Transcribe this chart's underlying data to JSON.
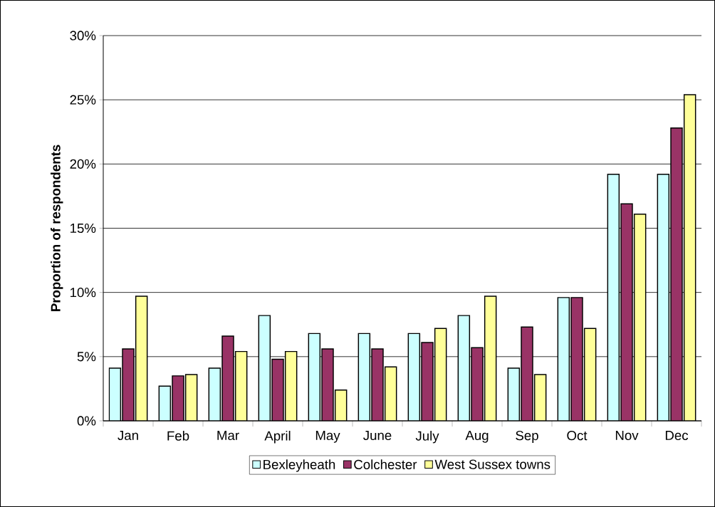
{
  "chart_data": {
    "type": "bar",
    "ylabel": "Proportion of respondents",
    "categories": [
      "Jan",
      "Feb",
      "Mar",
      "April",
      "May",
      "June",
      "July",
      "Aug",
      "Sep",
      "Oct",
      "Nov",
      "Dec"
    ],
    "series": [
      {
        "name": "Bexleyheath",
        "color": "#ccffff",
        "values": [
          4.1,
          2.7,
          4.1,
          8.2,
          6.8,
          6.8,
          6.8,
          8.2,
          4.1,
          9.6,
          19.2,
          19.2
        ]
      },
      {
        "name": "Colchester",
        "color": "#993366",
        "values": [
          5.6,
          3.5,
          6.6,
          4.8,
          5.6,
          5.6,
          6.1,
          5.7,
          7.3,
          9.6,
          16.9,
          22.8
        ]
      },
      {
        "name": "West Sussex towns",
        "color": "#ffff99",
        "values": [
          9.7,
          3.6,
          5.4,
          5.4,
          2.4,
          4.2,
          7.2,
          9.7,
          3.6,
          7.2,
          16.1,
          25.4
        ]
      }
    ],
    "ylim": [
      0,
      30
    ],
    "yticks": [
      {
        "value": 0,
        "label": "0%"
      },
      {
        "value": 5,
        "label": "5%"
      },
      {
        "value": 10,
        "label": "10%"
      },
      {
        "value": 15,
        "label": "15%"
      },
      {
        "value": 20,
        "label": "20%"
      },
      {
        "value": 25,
        "label": "25%"
      },
      {
        "value": 30,
        "label": "30%"
      }
    ],
    "grid": "y",
    "legend": "bottom"
  }
}
